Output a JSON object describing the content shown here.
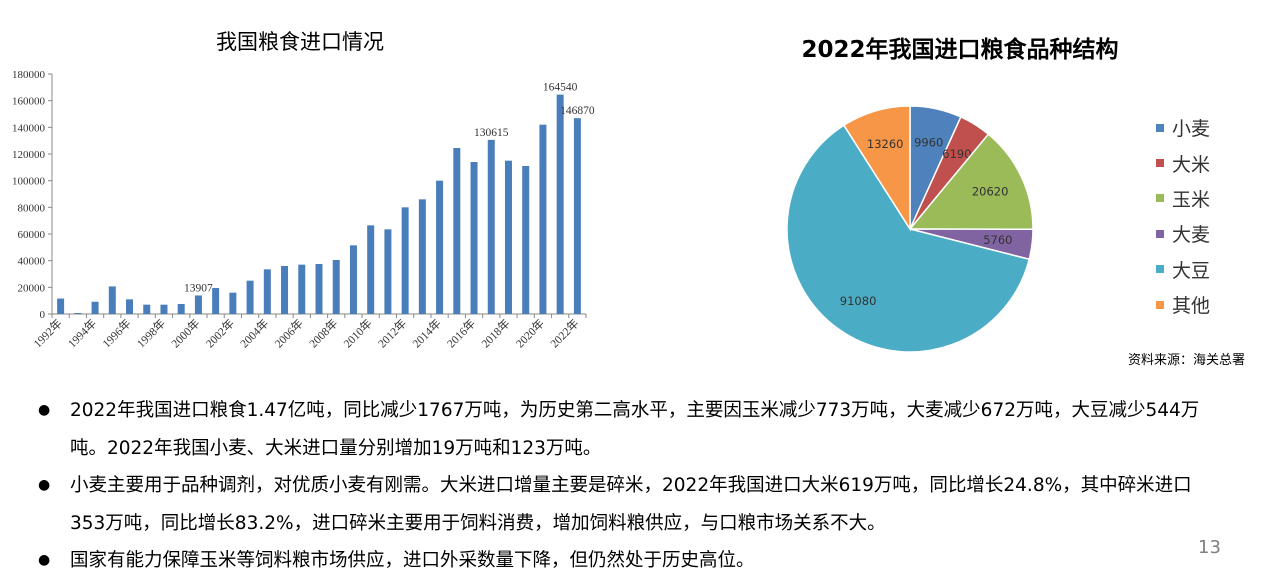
{
  "chart_data": [
    {
      "type": "bar",
      "title": "我国粮食进口情况",
      "categories": [
        "1992年",
        "1993年",
        "1994年",
        "1995年",
        "1996年",
        "1997年",
        "1998年",
        "1999年",
        "2000年",
        "2001年",
        "2002年",
        "2003年",
        "2004年",
        "2005年",
        "2006年",
        "2007年",
        "2008年",
        "2009年",
        "2010年",
        "2011年",
        "2012年",
        "2013年",
        "2014年",
        "2015年",
        "2016年",
        "2017年",
        "2018年",
        "2019年",
        "2020年",
        "2021年",
        "2022年"
      ],
      "tick_labels": [
        "1992年",
        "1994年",
        "1996年",
        "1998年",
        "2000年",
        "2002年",
        "2004年",
        "2006年",
        "2008年",
        "2010年",
        "2012年",
        "2014年",
        "2016年",
        "2018年",
        "2020年",
        "2022年"
      ],
      "values": [
        11580,
        750,
        9200,
        20700,
        11000,
        7000,
        7000,
        7500,
        13907,
        19500,
        16000,
        25000,
        33500,
        36000,
        37000,
        37500,
        40500,
        51500,
        66500,
        63500,
        80000,
        86000,
        100000,
        124500,
        114000,
        130615,
        115000,
        111000,
        142000,
        164540,
        146870
      ],
      "data_labels": {
        "2000年": "13907",
        "2017年": "130615",
        "2021年": "164540",
        "2022年": "146870"
      },
      "ylim": [
        0,
        180000
      ],
      "yticks": [
        "0",
        "20000",
        "40000",
        "60000",
        "80000",
        "100000",
        "120000",
        "140000",
        "160000",
        "180000"
      ],
      "color": "#4a7ebb",
      "grid": false
    },
    {
      "type": "pie",
      "title": "2022年我国进口粮食品种结构",
      "slices": [
        {
          "label": "小麦",
          "value": 9960,
          "color": "#4f81bd"
        },
        {
          "label": "大米",
          "value": 6190,
          "color": "#c0504d"
        },
        {
          "label": "玉米",
          "value": 20620,
          "color": "#9bbb59"
        },
        {
          "label": "大麦",
          "value": 5760,
          "color": "#8064a2"
        },
        {
          "label": "大豆",
          "value": 91080,
          "color": "#4bacc6"
        },
        {
          "label": "其他",
          "value": 13260,
          "color": "#f79646"
        }
      ],
      "legend_position": "right"
    }
  ],
  "source_note": "资料来源：海关总署",
  "bullets": [
    "2022年我国进口粮食1.47亿吨，同比减少1767万吨，为历史第二高水平，主要因玉米减少773万吨，大麦减少672万吨，大豆减少544万吨。2022年我国小麦、大米进口量分别增加19万吨和123万吨。",
    "小麦主要用于品种调剂，对优质小麦有刚需。大米进口增量主要是碎米，2022年我国进口大米619万吨，同比增长24.8%，其中碎米进口353万吨，同比增长83.2%，进口碎米主要用于饲料消费，增加饲料粮供应，与口粮市场关系不大。",
    "国家有能力保障玉米等饲料粮市场供应，进口外采数量下降，但仍然处于历史高位。"
  ],
  "page_number": "13"
}
